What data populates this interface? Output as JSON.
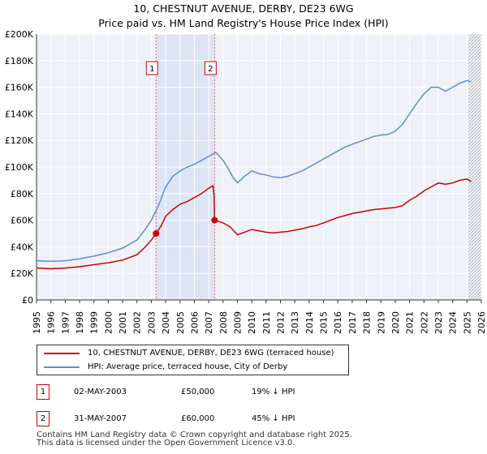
{
  "chart_data": {
    "type": "line",
    "title": "10, CHESTNUT AVENUE, DERBY, DE23 6WG",
    "subtitle": "Price paid vs. HM Land Registry's House Price Index (HPI)",
    "xlabel": "",
    "ylabel": "",
    "xlim": [
      1995,
      2026
    ],
    "ylim": [
      0,
      200000
    ],
    "y_ticks": [
      0,
      20000,
      40000,
      60000,
      80000,
      100000,
      120000,
      140000,
      160000,
      180000,
      200000
    ],
    "y_tick_labels": [
      "£0",
      "£20K",
      "£40K",
      "£60K",
      "£80K",
      "£100K",
      "£120K",
      "£140K",
      "£160K",
      "£180K",
      "£200K"
    ],
    "x_ticks": [
      1995,
      1996,
      1997,
      1998,
      1999,
      2000,
      2001,
      2002,
      2003,
      2004,
      2005,
      2006,
      2007,
      2008,
      2009,
      2010,
      2011,
      2012,
      2013,
      2014,
      2015,
      2016,
      2017,
      2018,
      2019,
      2020,
      2021,
      2022,
      2023,
      2024,
      2025,
      2026
    ],
    "x_tick_labels": [
      "1995",
      "1996",
      "1997",
      "1998",
      "1999",
      "2000",
      "2001",
      "2002",
      "2003",
      "2004",
      "2005",
      "2006",
      "2007",
      "2008",
      "2009",
      "2010",
      "2011",
      "2012",
      "2013",
      "2014",
      "2015",
      "2016",
      "2017",
      "2018",
      "2019",
      "2020",
      "2021",
      "2022",
      "2023",
      "2024",
      "2025",
      "2026"
    ],
    "grid": true,
    "shaded_region": [
      2003.33,
      2007.41
    ],
    "forecast_start": 2025.1,
    "series": [
      {
        "name": "10, CHESTNUT AVENUE, DERBY, DE23 6WG (terraced house)",
        "color": "#cc0000",
        "x": [
          1995,
          1996,
          1997,
          1998,
          1999,
          2000,
          2001,
          2002,
          2002.5,
          2003,
          2003.33,
          2003.7,
          2004,
          2004.5,
          2005,
          2005.5,
          2006,
          2006.5,
          2007,
          2007.3,
          2007.38,
          2007.41,
          2008,
          2008.5,
          2009,
          2009.5,
          2010,
          2010.5,
          2011,
          2011.5,
          2012,
          2012.5,
          2013,
          2013.5,
          2014,
          2014.5,
          2015,
          2015.5,
          2016,
          2016.5,
          2017,
          2017.5,
          2018,
          2018.5,
          2019,
          2019.5,
          2020,
          2020.5,
          2021,
          2021.5,
          2022,
          2022.5,
          2023,
          2023.5,
          2024,
          2024.5,
          2025,
          2025.3
        ],
        "y": [
          24000,
          23500,
          24000,
          25000,
          26500,
          28000,
          30000,
          34000,
          39000,
          45000,
          50000,
          56000,
          63000,
          68000,
          72000,
          74000,
          77000,
          80000,
          84000,
          86000,
          78000,
          60000,
          58000,
          55000,
          49000,
          51000,
          53000,
          52000,
          51000,
          50500,
          51000,
          51500,
          52500,
          53500,
          55000,
          56000,
          58000,
          60000,
          62000,
          63500,
          65000,
          66000,
          67000,
          68000,
          68500,
          69000,
          69500,
          71000,
          75000,
          78000,
          82000,
          85000,
          88000,
          87000,
          88000,
          90000,
          91000,
          89000
        ]
      },
      {
        "name": "HPI: Average price, terraced house, City of Derby",
        "color": "#5b8fd1",
        "x": [
          1995,
          1996,
          1997,
          1998,
          1999,
          2000,
          2001,
          2002,
          2002.5,
          2003,
          2003.5,
          2004,
          2004.5,
          2005,
          2005.5,
          2006,
          2006.5,
          2007,
          2007.5,
          2008,
          2008.3,
          2008.7,
          2009,
          2009.5,
          2010,
          2010.5,
          2011,
          2011.5,
          2012,
          2012.5,
          2013,
          2013.5,
          2014,
          2014.5,
          2015,
          2015.5,
          2016,
          2016.5,
          2017,
          2017.5,
          2018,
          2018.5,
          2019,
          2019.5,
          2020,
          2020.5,
          2021,
          2021.5,
          2022,
          2022.5,
          2023,
          2023.5,
          2024,
          2024.5,
          2025,
          2025.3
        ],
        "y": [
          29500,
          29000,
          29500,
          31000,
          33000,
          35500,
          39000,
          45000,
          52000,
          60000,
          71000,
          85000,
          93000,
          97000,
          100000,
          102000,
          105000,
          108000,
          111000,
          105000,
          100000,
          92000,
          88000,
          93000,
          97000,
          95000,
          94000,
          92500,
          92000,
          93000,
          95000,
          97000,
          100000,
          103000,
          106000,
          109000,
          112000,
          115000,
          117000,
          119000,
          121000,
          123000,
          124000,
          124500,
          127000,
          132000,
          140000,
          148000,
          155000,
          160000,
          160000,
          157000,
          160000,
          163000,
          165000,
          164000
        ]
      }
    ],
    "annotations": [
      {
        "label": "1",
        "x": 2003.33
      },
      {
        "label": "2",
        "x": 2007.41
      }
    ],
    "sale_points": [
      {
        "x": 2003.33,
        "y": 50000
      },
      {
        "x": 2007.41,
        "y": 60000
      }
    ]
  },
  "legend": {
    "property_label": "10, CHESTNUT AVENUE, DERBY, DE23 6WG (terraced house)",
    "hpi_label": "HPI: Average price, terraced house, City of Derby"
  },
  "sales": [
    {
      "num": "1",
      "date": "02-MAY-2003",
      "price": "£50,000",
      "hpi": "19% ↓ HPI"
    },
    {
      "num": "2",
      "date": "31-MAY-2007",
      "price": "£60,000",
      "hpi": "45% ↓ HPI"
    }
  ],
  "footer": {
    "line1": "Contains HM Land Registry data © Crown copyright and database right 2025.",
    "line2": "This data is licensed under the Open Government Licence v3.0."
  }
}
